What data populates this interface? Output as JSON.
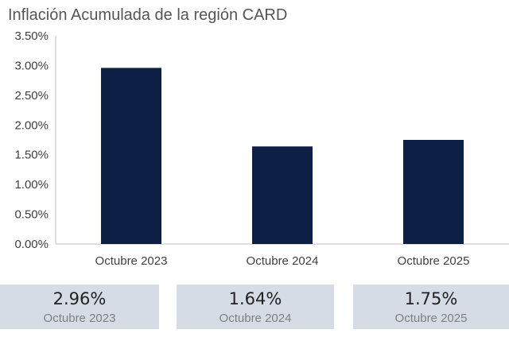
{
  "chart_data": {
    "type": "bar",
    "title": "Inflación Acumulada de la región CARD",
    "xlabel": "",
    "ylabel": "",
    "categories": [
      "Octubre 2023",
      "Octubre 2024",
      "Octubre 2025"
    ],
    "values": [
      2.96,
      1.64,
      1.75
    ],
    "ylim": [
      0,
      3.5
    ],
    "yticks": [
      "0.00%",
      "0.50%",
      "1.00%",
      "1.50%",
      "2.00%",
      "2.50%",
      "3.00%",
      "3.50%"
    ],
    "bar_color": "#0e1f45",
    "grid": false,
    "legend": "none"
  },
  "summary_cards": [
    {
      "value": "2.96%",
      "label": "Octubre 2023"
    },
    {
      "value": "1.64%",
      "label": "Octubre 2024"
    },
    {
      "value": "1.75%",
      "label": "Octubre 2025"
    }
  ]
}
